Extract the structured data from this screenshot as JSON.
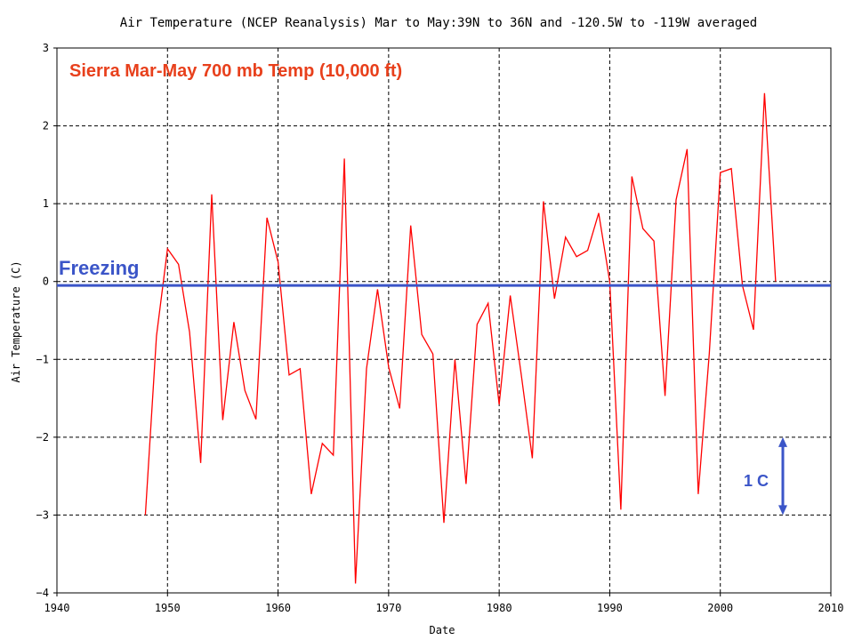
{
  "chart_data": {
    "type": "line",
    "title": "Air Temperature (NCEP Reanalysis) Mar to May:39N to 36N and -120.5W to -119W averaged",
    "xlabel": "Date",
    "ylabel": "Air Temperature (C)",
    "xlim": [
      1940,
      2010
    ],
    "ylim": [
      -4,
      3
    ],
    "xticks": [
      1940,
      1950,
      1960,
      1970,
      1980,
      1990,
      2000,
      2010
    ],
    "yticks": [
      -4,
      -3,
      -2,
      -1,
      0,
      1,
      2,
      3
    ],
    "grid": true,
    "series": [
      {
        "color": "#ff0000",
        "x": [
          1948,
          1949,
          1950,
          1951,
          1952,
          1953,
          1954,
          1955,
          1956,
          1957,
          1958,
          1959,
          1960,
          1961,
          1962,
          1963,
          1964,
          1965,
          1966,
          1967,
          1968,
          1969,
          1970,
          1971,
          1972,
          1973,
          1974,
          1975,
          1976,
          1977,
          1978,
          1979,
          1980,
          1981,
          1982,
          1983,
          1984,
          1985,
          1986,
          1987,
          1988,
          1989,
          1990,
          1991,
          1992,
          1993,
          1994,
          1995,
          1996,
          1997,
          1998,
          1999,
          2000,
          2001,
          2002,
          2003,
          2004,
          2005
        ],
        "y": [
          -3.0,
          -0.7,
          0.42,
          0.22,
          -0.65,
          -2.33,
          1.12,
          -1.78,
          -0.52,
          -1.4,
          -1.77,
          0.82,
          0.25,
          -1.2,
          -1.12,
          -2.73,
          -2.08,
          -2.23,
          1.58,
          -3.88,
          -1.12,
          -0.1,
          -1.1,
          -1.63,
          0.72,
          -0.68,
          -0.93,
          -3.1,
          -1.0,
          -2.6,
          -0.55,
          -0.28,
          -1.58,
          -0.18,
          -1.2,
          -2.27,
          1.03,
          -0.22,
          0.57,
          0.32,
          0.4,
          0.88,
          0.0,
          -2.93,
          1.35,
          0.68,
          0.52,
          -1.47,
          1.05,
          1.7,
          -2.73,
          -0.93,
          1.4,
          1.45,
          -0.05,
          -0.62,
          2.42,
          0.0
        ]
      },
      {
        "name": "Freezing",
        "color": "#3b55c8",
        "x": [
          1940,
          2010
        ],
        "y": [
          -0.05,
          -0.05
        ]
      }
    ],
    "annotations": {
      "main_label": "Sierra Mar-May 700 mb Temp  (10,000 ft)",
      "freezing_label": "Freezing",
      "scale_label": "1 C",
      "scale_from": -2.0,
      "scale_to": -3.0
    },
    "annotation_color": "#3b55c8",
    "main_label_color": "#e8401c"
  }
}
